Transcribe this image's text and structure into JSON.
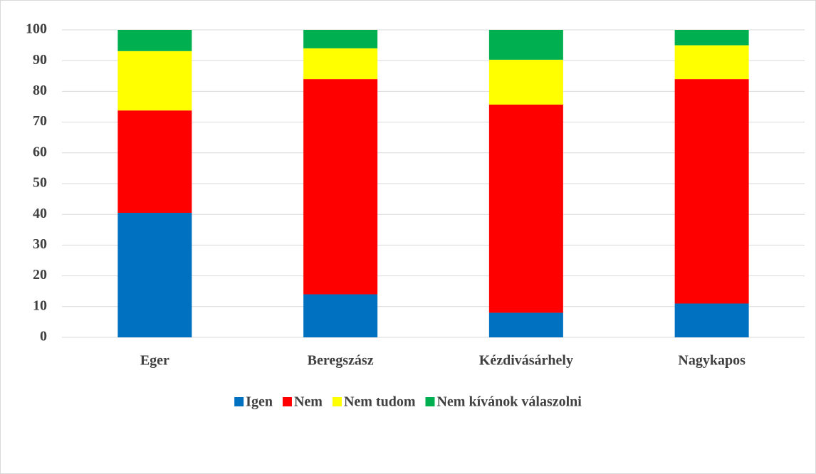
{
  "chart_data": {
    "type": "stacked_bar",
    "categories": [
      "Eger",
      "Beregszász",
      "Kézdivásárhely",
      "Nagykapos"
    ],
    "series": [
      {
        "name": "Igen",
        "color": "#0070c0",
        "values": [
          40.5,
          14,
          8,
          11
        ]
      },
      {
        "name": "Nem",
        "color": "#ff0000",
        "values": [
          33.3,
          70,
          67.7,
          73
        ]
      },
      {
        "name": "Nem tudom",
        "color": "#ffff00",
        "values": [
          19.3,
          10,
          14.6,
          11
        ]
      },
      {
        "name": "Nem kívánok válaszolni",
        "color": "#00b050",
        "values": [
          6.9,
          6,
          9.7,
          5
        ]
      }
    ],
    "ylim": [
      0,
      100
    ],
    "yticks": [
      0,
      10,
      20,
      30,
      40,
      50,
      60,
      70,
      80,
      90,
      100
    ],
    "grid": true,
    "legend": "bottom"
  }
}
